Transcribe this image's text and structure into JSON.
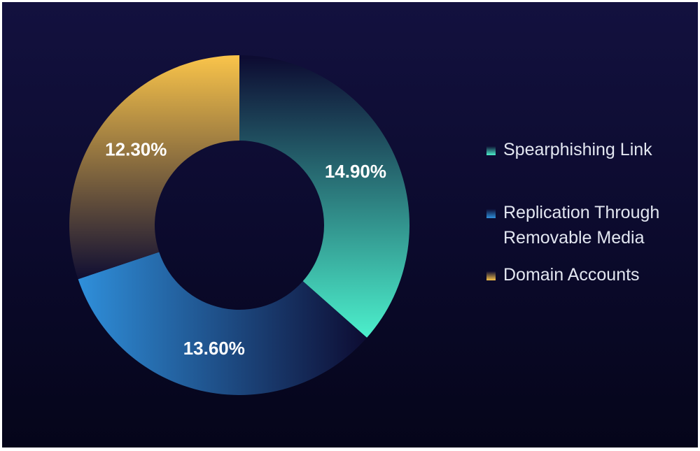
{
  "chart_data": {
    "type": "donut",
    "categories": [
      "Spearphishing Link",
      "Replication Through Removable Media",
      "Domain Accounts"
    ],
    "values": [
      14.9,
      13.6,
      12.3
    ],
    "value_labels": [
      "14.90%",
      "13.60%",
      "12.30%"
    ],
    "colors": [
      "#4cf0cc",
      "#2f8fda",
      "#f7c24a"
    ],
    "legend": "right"
  }
}
